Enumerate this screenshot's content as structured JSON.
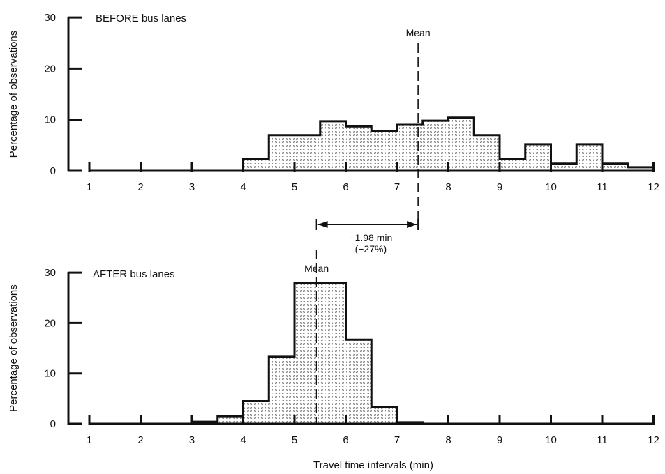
{
  "chart_data": [
    {
      "type": "bar",
      "title": "BEFORE bus lanes",
      "ylabel": "Percentage of observations",
      "xlabel": "",
      "xlim": [
        1,
        12
      ],
      "ylim": [
        0,
        30
      ],
      "xticks": [
        "1",
        "2",
        "3",
        "4",
        "5",
        "6",
        "7",
        "8",
        "9",
        "10",
        "11",
        "12"
      ],
      "yticks": [
        "0",
        "10",
        "20",
        "30"
      ],
      "bin_edges": [
        4.0,
        4.5,
        5.0,
        5.5,
        6.0,
        6.5,
        7.0,
        7.5,
        8.0,
        8.5,
        9.0,
        9.5,
        10.0,
        10.5,
        11.0,
        11.5,
        12.0
      ],
      "values": [
        2.3,
        7.0,
        7.0,
        9.7,
        8.7,
        7.8,
        9.0,
        9.8,
        10.4,
        7.0,
        2.3,
        5.2,
        1.4,
        5.2,
        1.4,
        0.7
      ],
      "mean": 7.41,
      "mean_label": "Mean"
    },
    {
      "type": "bar",
      "title": "AFTER bus lanes",
      "ylabel": "Percentage of observations",
      "xlabel": "Travel time intervals (min)",
      "xlim": [
        1,
        12
      ],
      "ylim": [
        0,
        30
      ],
      "xticks": [
        "1",
        "2",
        "3",
        "4",
        "5",
        "6",
        "7",
        "8",
        "9",
        "10",
        "11",
        "12"
      ],
      "yticks": [
        "0",
        "10",
        "20",
        "30"
      ],
      "bin_edges": [
        3.0,
        3.5,
        4.0,
        4.5,
        5.0,
        5.5,
        6.0,
        6.5,
        7.0,
        7.5
      ],
      "values": [
        0.4,
        1.5,
        4.5,
        13.3,
        27.9,
        27.9,
        16.7,
        3.3,
        0.3
      ],
      "mean": 5.43,
      "mean_label": "Mean"
    }
  ],
  "difference": {
    "line1": "−1.98 min",
    "line2": "(−27%)"
  }
}
